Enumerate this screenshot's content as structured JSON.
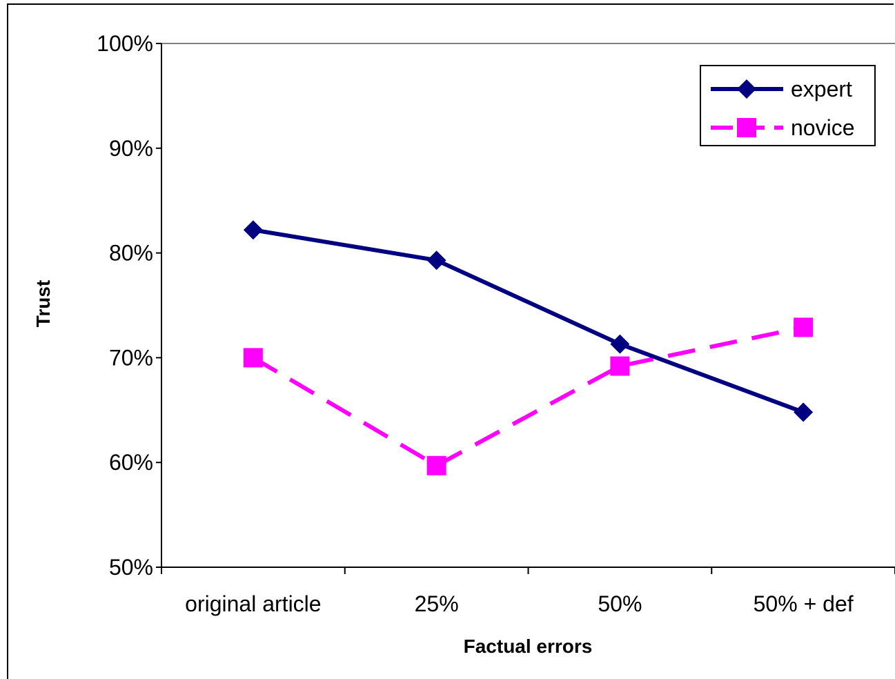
{
  "chart_data": {
    "type": "line",
    "categories": [
      "original article",
      "25%",
      "50%",
      "50% + def"
    ],
    "series": [
      {
        "name": "expert",
        "values": [
          82.2,
          79.3,
          71.3,
          64.8
        ],
        "color": "#000080",
        "marker": "diamond",
        "line": "solid"
      },
      {
        "name": "novice",
        "values": [
          70.0,
          59.7,
          69.2,
          72.9
        ],
        "color": "#FF00FF",
        "marker": "square",
        "line": "dashed"
      }
    ],
    "xlabel": "Factual errors",
    "ylabel": "Trust",
    "ylim": [
      50,
      100
    ],
    "yticks": [
      "50%",
      "60%",
      "70%",
      "80%",
      "90%",
      "100%"
    ],
    "grid": "top border only",
    "legend": "top-right"
  }
}
